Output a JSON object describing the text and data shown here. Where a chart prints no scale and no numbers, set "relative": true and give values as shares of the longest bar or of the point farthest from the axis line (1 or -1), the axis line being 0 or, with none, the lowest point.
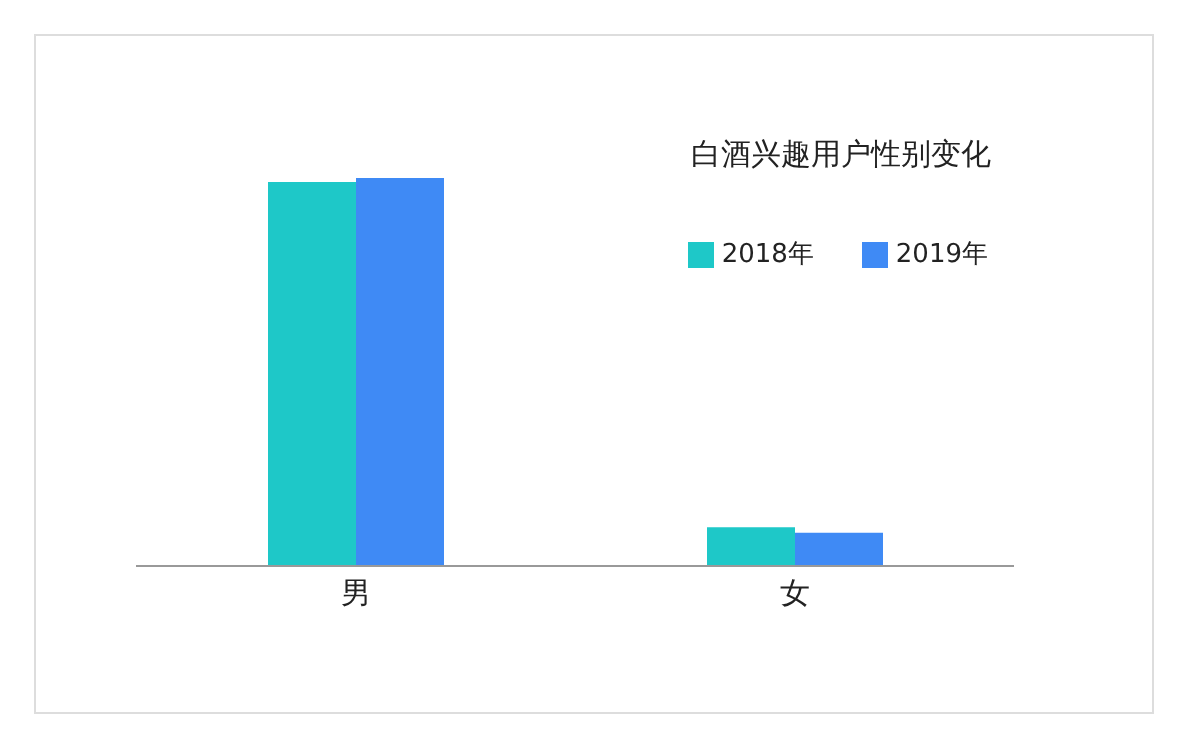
{
  "chart_data": {
    "type": "bar",
    "title": "白酒兴趣用户性别变化",
    "categories": [
      "男",
      "女"
    ],
    "relative": true,
    "legend": "top right",
    "grid": false,
    "series": [
      {
        "name": "2018年",
        "color": "#1ec8c8",
        "values": [
          0.99,
          0.1
        ]
      },
      {
        "name": "2019年",
        "color": "#3f8af5",
        "values": [
          1,
          0.086
        ]
      }
    ]
  }
}
